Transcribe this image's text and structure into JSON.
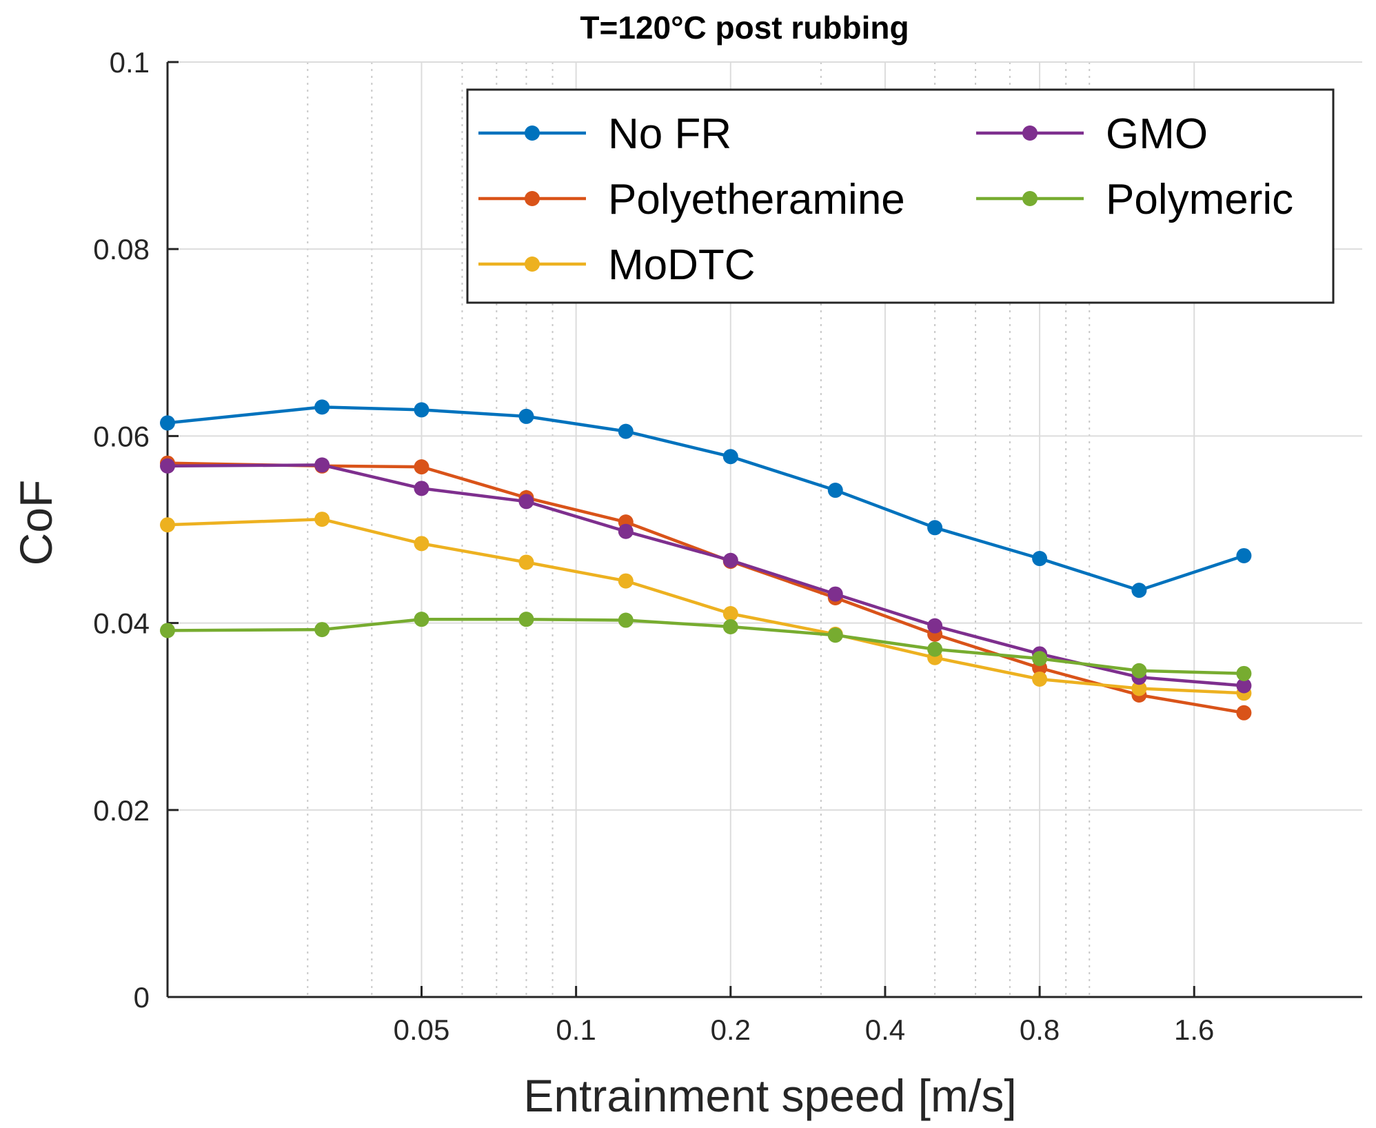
{
  "chart_data": {
    "type": "line",
    "title": "T=120°C post rubbing",
    "xlabel": "Entrainment speed [m/s]",
    "ylabel": "CoF",
    "xscale": "log2",
    "xlim": [
      0.016,
      3.4
    ],
    "ylim": [
      0,
      0.1
    ],
    "grid": true,
    "legend_position": "top-right",
    "legend_columns": 2,
    "x_ticks": [
      0.05,
      0.1,
      0.2,
      0.4,
      0.8,
      1.6
    ],
    "x_tick_labels": [
      "0.05",
      "0.1",
      "0.2",
      "0.4",
      "0.8",
      "1.6"
    ],
    "x_minor_ticks": [
      0.03,
      0.04,
      0.06,
      0.07,
      0.08,
      0.09,
      0.3,
      0.5,
      0.6,
      0.7,
      0.9,
      1.0
    ],
    "y_ticks": [
      0,
      0.02,
      0.04,
      0.06,
      0.08,
      0.1
    ],
    "y_tick_labels": [
      "0",
      "0.02",
      "0.04",
      "0.06",
      "0.08",
      "0.1"
    ],
    "x": [
      0.016,
      0.032,
      0.05,
      0.08,
      0.125,
      0.2,
      0.32,
      0.5,
      0.8,
      1.25,
      2.0
    ],
    "series": [
      {
        "name": "No FR",
        "color": "#0072BD",
        "values": [
          0.0614,
          0.0631,
          0.0628,
          0.0621,
          0.0605,
          0.0578,
          0.0542,
          0.0502,
          0.0469,
          0.0435,
          0.0472
        ]
      },
      {
        "name": "Polyetheramine",
        "color": "#D95319",
        "values": [
          0.0571,
          0.0568,
          0.0567,
          0.0534,
          0.0508,
          0.0466,
          0.0427,
          0.0388,
          0.0352,
          0.0323,
          0.0304
        ]
      },
      {
        "name": "MoDTC",
        "color": "#EDB120",
        "values": [
          0.0505,
          0.0511,
          0.0485,
          0.0465,
          0.0445,
          0.041,
          0.0388,
          0.0363,
          0.034,
          0.033,
          0.0325
        ]
      },
      {
        "name": "GMO",
        "color": "#7E2F8E",
        "values": [
          0.0568,
          0.0569,
          0.0544,
          0.053,
          0.0498,
          0.0467,
          0.0431,
          0.0397,
          0.0367,
          0.0342,
          0.0333
        ]
      },
      {
        "name": "Polymeric",
        "color": "#77AC30",
        "values": [
          0.0392,
          0.0393,
          0.0404,
          0.0404,
          0.0403,
          0.0396,
          0.0387,
          0.0372,
          0.0362,
          0.0349,
          0.0346
        ]
      }
    ]
  }
}
